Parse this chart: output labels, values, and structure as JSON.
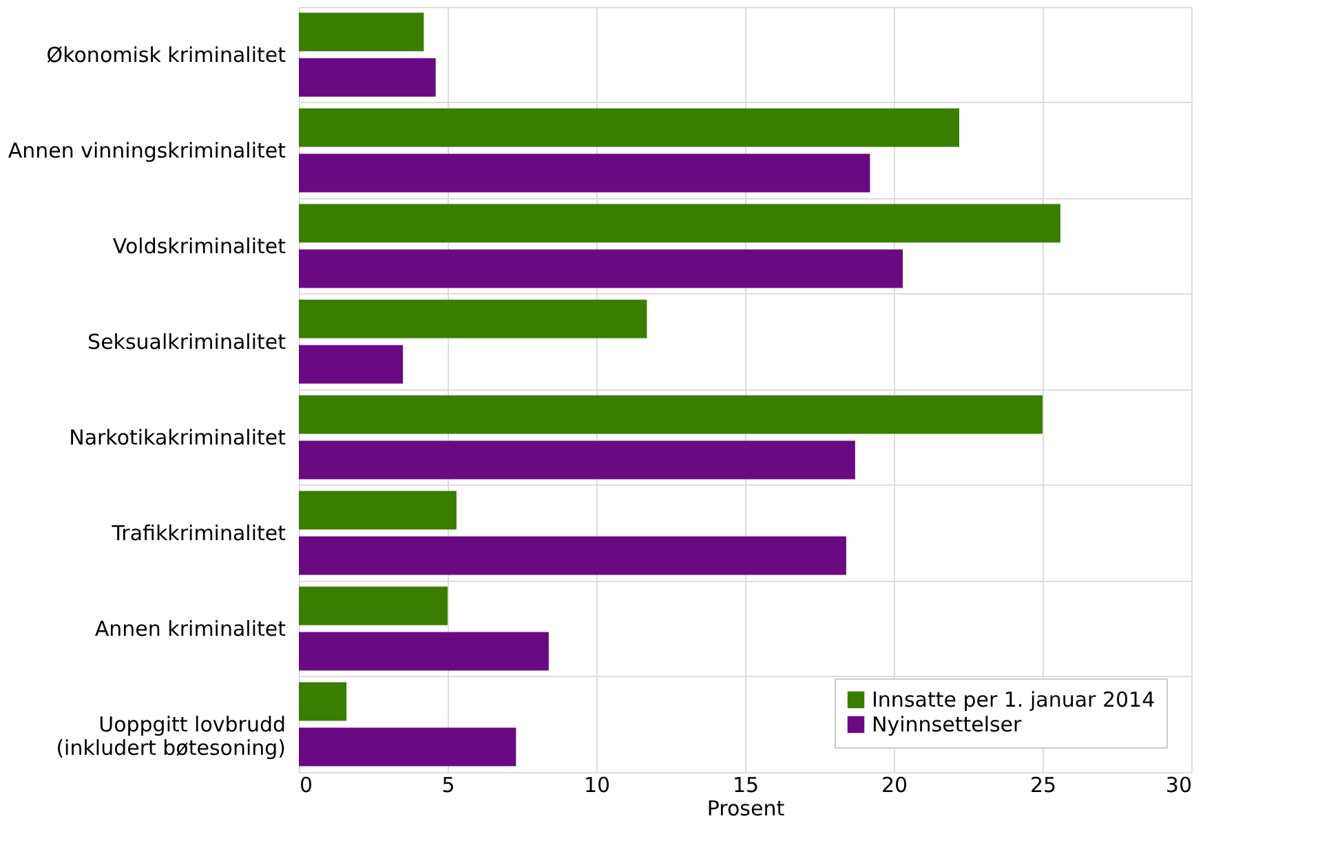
{
  "chart_data": {
    "type": "bar",
    "orientation": "horizontal",
    "xlabel": "Prosent",
    "categories": [
      "Økonomisk kriminalitet",
      "Annen vinningskriminalitet",
      "Voldskriminalitet",
      "Seksualkriminalitet",
      "Narkotikakriminalitet",
      "Trafikkriminalitet",
      "Annen kriminalitet",
      "Uoppgitt lovbrudd\n(inkludert bøtesoning)"
    ],
    "series": [
      {
        "name": "Innsatte per 1. januar 2014",
        "color": "#3a7d00",
        "values": [
          4.2,
          22.2,
          25.6,
          11.7,
          25.0,
          5.3,
          5.0,
          1.6
        ]
      },
      {
        "name": "Nyinnsettelser",
        "color": "#6a0a82",
        "values": [
          4.6,
          19.2,
          20.3,
          3.5,
          18.7,
          18.4,
          8.4,
          7.3
        ]
      }
    ],
    "xlim": [
      0,
      30
    ],
    "xticks": [
      0,
      5,
      10,
      15,
      20,
      25,
      30
    ],
    "grid": true,
    "legend": "bottom right"
  }
}
